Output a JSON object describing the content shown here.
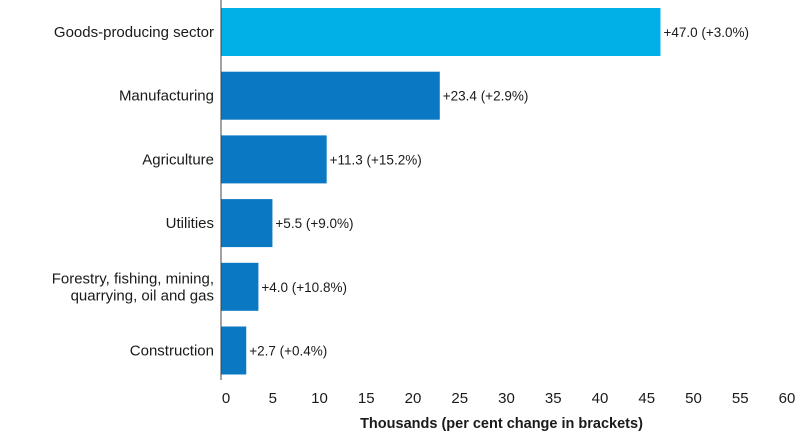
{
  "chart_data": {
    "type": "bar",
    "orientation": "horizontal",
    "categories": [
      [
        "Goods-producing sector"
      ],
      [
        "Manufacturing"
      ],
      [
        "Agriculture"
      ],
      [
        "Utilities"
      ],
      [
        "Forestry, fishing, mining,",
        "quarrying, oil and gas"
      ],
      [
        "Construction"
      ]
    ],
    "values": [
      47.0,
      23.4,
      11.3,
      5.5,
      4.0,
      2.7
    ],
    "value_labels": [
      "+47.0 (+3.0%)",
      "+23.4 (+2.9%)",
      "+11.3 (+15.2%)",
      "+5.5 (+9.0%)",
      "+4.0 (+10.8%)",
      "+2.7 (+0.4%)"
    ],
    "bar_colors": [
      "#00b0e6",
      "#0a78c2",
      "#0a78c2",
      "#0a78c2",
      "#0a78c2",
      "#0a78c2"
    ],
    "xlabel": "Thousands (per cent change in brackets)",
    "xlim": [
      0,
      60
    ],
    "xticks": [
      0,
      5,
      10,
      15,
      20,
      25,
      30,
      35,
      40,
      45,
      50,
      55,
      60
    ],
    "title": "",
    "grid": false,
    "legend": "none"
  }
}
